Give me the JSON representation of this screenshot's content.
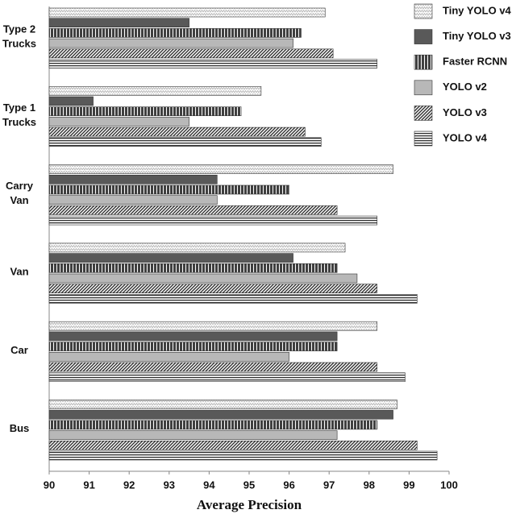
{
  "chart_data": {
    "type": "hbar",
    "x_label": "Average Precision",
    "categories": [
      "Type 2 Trucks",
      "Type 1 Trucks",
      "Carry Van",
      "Van",
      "Car",
      "Bus"
    ],
    "series": [
      {
        "name": "Tiny YOLO v4",
        "color": "#bdbdbd",
        "pattern": "zigzag",
        "values": [
          96.9,
          95.3,
          98.6,
          97.4,
          98.2,
          98.7
        ]
      },
      {
        "name": "Tiny YOLO v3",
        "color": "#595959",
        "pattern": "solid",
        "values": [
          93.5,
          91.1,
          94.2,
          96.1,
          97.2,
          98.6
        ]
      },
      {
        "name": "Faster RCNN",
        "color": "#404040",
        "pattern": "vertical",
        "values": [
          96.3,
          94.8,
          96.0,
          97.2,
          97.2,
          98.2
        ]
      },
      {
        "name": "YOLO v2",
        "color": "#b8b8b8",
        "pattern": "solid",
        "values": [
          96.1,
          93.5,
          94.2,
          97.7,
          96.0,
          97.2
        ]
      },
      {
        "name": "YOLO v3",
        "color": "#303030",
        "pattern": "diagonal",
        "values": [
          97.1,
          96.4,
          97.2,
          98.2,
          98.2,
          99.2
        ]
      },
      {
        "name": "YOLO v4",
        "color": "#303030",
        "pattern": "horizontal",
        "values": [
          98.2,
          96.8,
          98.2,
          99.2,
          98.9,
          99.7
        ]
      }
    ],
    "xlim": [
      90,
      100
    ],
    "xticks": [
      90,
      91,
      92,
      93,
      94,
      95,
      96,
      97,
      98,
      99,
      100
    ],
    "legend": "right"
  }
}
